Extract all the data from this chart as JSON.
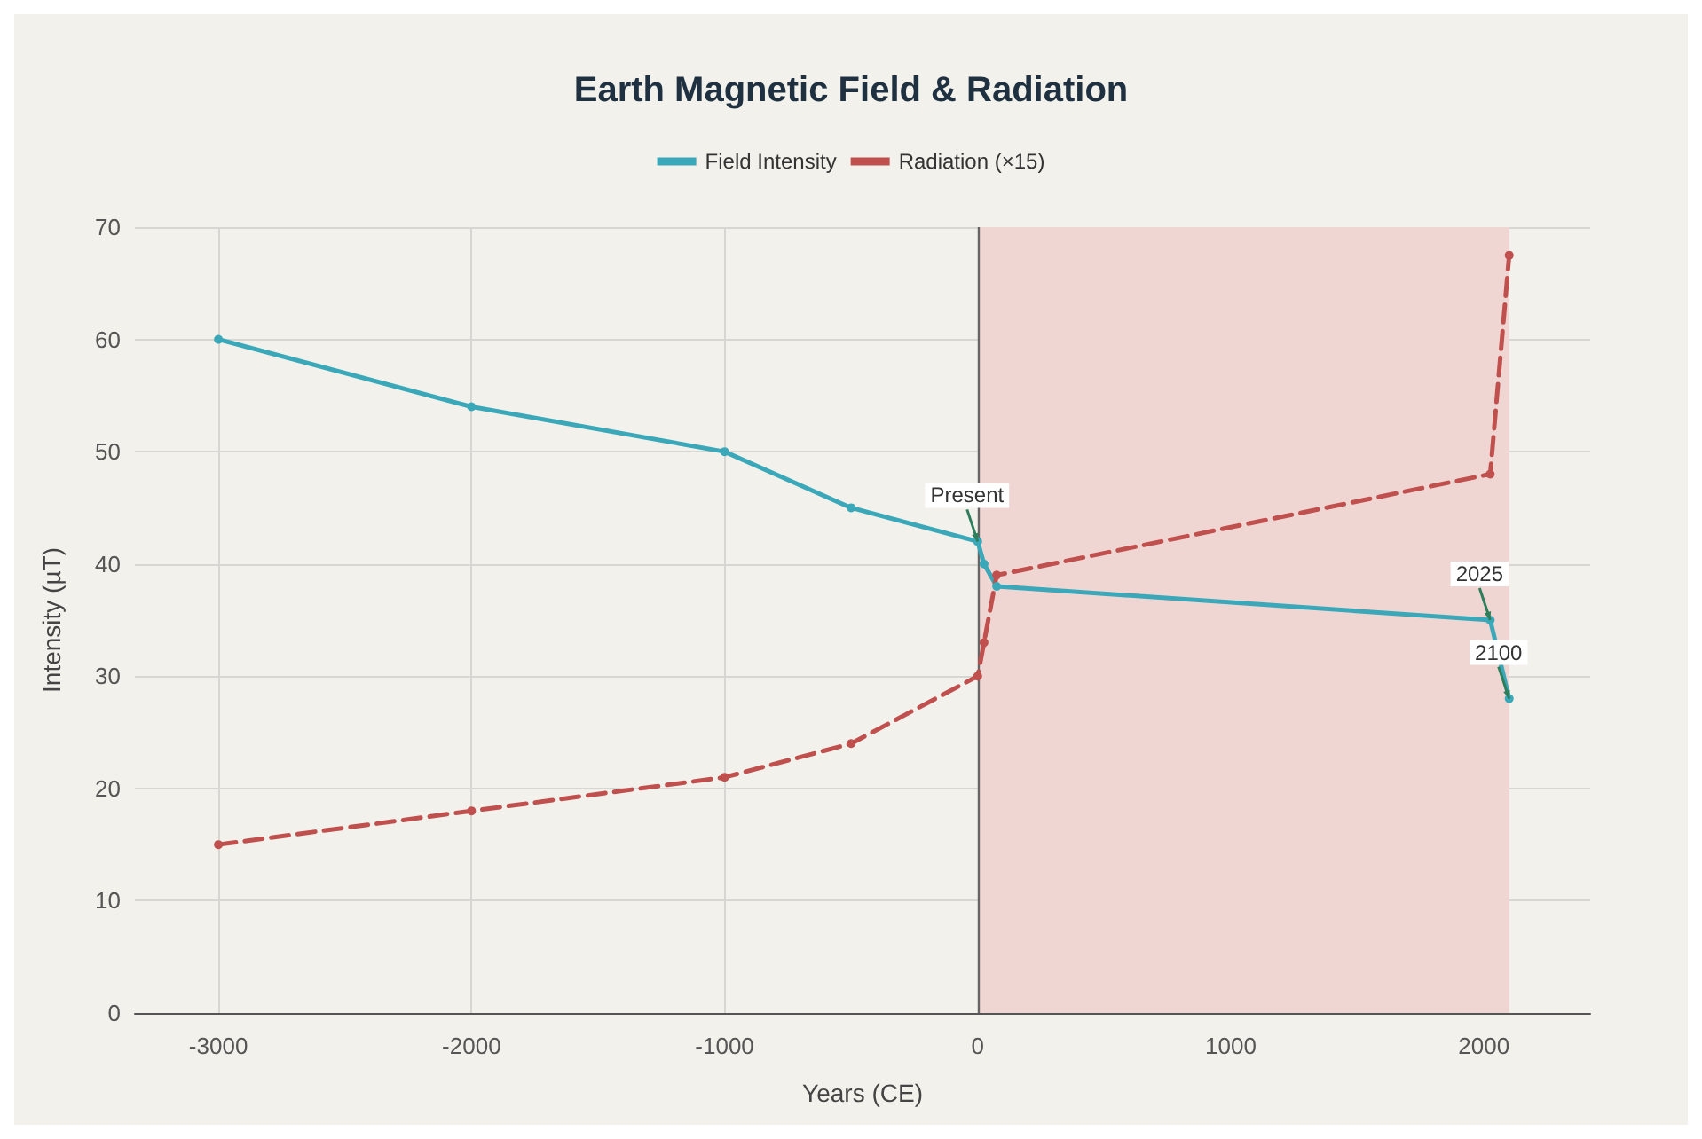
{
  "chart_data": {
    "type": "line",
    "title": "Earth Magnetic Field & Radiation",
    "xlabel": "Years (CE)",
    "ylabel": "Intensity (µT)",
    "x": [
      -3000,
      -2000,
      -1000,
      -500,
      0,
      25,
      75,
      2025,
      2100
    ],
    "series": [
      {
        "name": "Field Intensity",
        "color": "#3aa8b8",
        "line_style": "solid",
        "values": [
          60,
          54,
          50,
          45,
          42,
          40,
          38,
          35,
          28
        ]
      },
      {
        "name": "Radiation (×15)",
        "color": "#c0504d",
        "line_style": "dashed",
        "values": [
          15,
          18,
          21,
          24,
          30,
          33,
          39,
          48,
          67.5
        ]
      }
    ],
    "xlim": [
      -3330,
      2420
    ],
    "xticks": [
      -3000,
      -2000,
      -1000,
      0,
      1000,
      2000
    ],
    "ylim": [
      0,
      70
    ],
    "yticks": [
      0,
      10,
      20,
      30,
      40,
      50,
      60,
      70
    ],
    "ref_lines": [
      {
        "axis": "x",
        "value": 0,
        "color": "#666666"
      }
    ],
    "bands": [
      {
        "axis": "x",
        "from": 0,
        "to": 2100,
        "color": "#f0d6d3"
      }
    ],
    "annotations": [
      {
        "text": "Present",
        "x": 0,
        "y": 42
      },
      {
        "text": "2025",
        "x": 2025,
        "y": 35
      },
      {
        "text": "2100",
        "x": 2100,
        "y": 28
      }
    ],
    "grid": true,
    "legend": "top",
    "marker": "circle"
  }
}
